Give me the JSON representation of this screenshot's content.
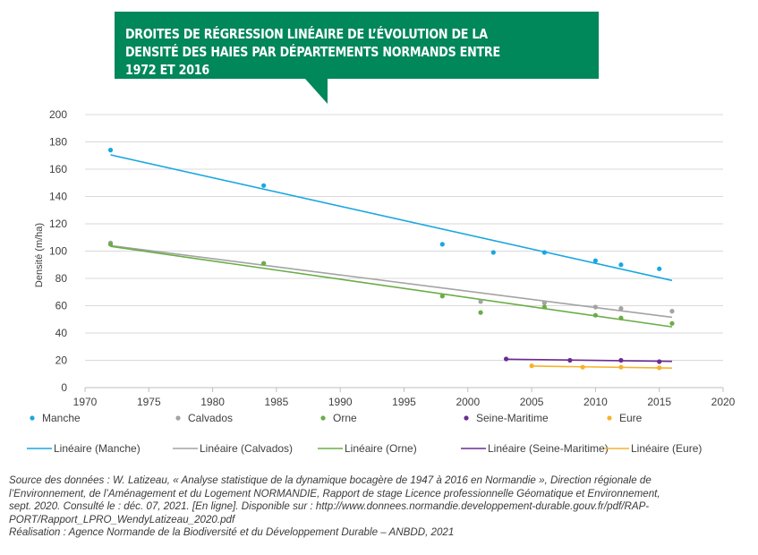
{
  "title": "DROITES DE RÉGRESSION LINÉAIRE DE L’ÉVOLUTION DE LA DENSITÉ DES HAIES PAR DÉPARTEMENTS NORMANDS ENTRE 1972 ET 2016",
  "colors": {
    "title_bg": "#00875a"
  },
  "chart_data": {
    "type": "scatter",
    "xlabel": "",
    "ylabel": "Densité (m/ha)",
    "xlim": [
      1970,
      2020
    ],
    "ylim": [
      0,
      200
    ],
    "x_ticks": [
      1970,
      1975,
      1980,
      1985,
      1990,
      1995,
      2000,
      2005,
      2010,
      2015,
      2020
    ],
    "y_ticks": [
      0,
      20,
      40,
      60,
      80,
      100,
      120,
      140,
      160,
      180,
      200
    ],
    "grid": "horizontal",
    "legend_position": "bottom",
    "series": [
      {
        "name": "Manche",
        "trend_name": "Linéaire (Manche)",
        "color": "#1aa7e0",
        "x": [
          1972,
          1984,
          1998,
          2002,
          2006,
          2010,
          2012,
          2015
        ],
        "y": [
          174,
          148,
          105,
          99,
          99,
          93,
          90,
          87
        ],
        "trend": [
          [
            1972,
            170.5
          ],
          [
            2016,
            78.5
          ]
        ]
      },
      {
        "name": "Calvados",
        "trend_name": "Linéaire (Calvados)",
        "color": "#a3a3a3",
        "x": [
          1972,
          1984,
          2001,
          2006,
          2010,
          2012,
          2016
        ],
        "y": [
          106,
          91,
          63,
          62,
          59,
          58,
          56
        ],
        "trend": [
          [
            1972,
            104
          ],
          [
            2016,
            51.5
          ]
        ]
      },
      {
        "name": "Orne",
        "trend_name": "Linéaire (Orne)",
        "color": "#6aad46",
        "x": [
          1972,
          1984,
          1998,
          2001,
          2006,
          2010,
          2012,
          2016
        ],
        "y": [
          105,
          91,
          67,
          55,
          59,
          53,
          51,
          47
        ],
        "trend": [
          [
            1972,
            103.5
          ],
          [
            2016,
            44.5
          ]
        ]
      },
      {
        "name": "Seine-Maritime",
        "trend_name": "Linéaire (Seine-Maritime)",
        "color": "#6b2c91",
        "x": [
          2003,
          2008,
          2012,
          2015
        ],
        "y": [
          21,
          20,
          20,
          19
        ],
        "trend": [
          [
            2003,
            20.8
          ],
          [
            2016,
            19.2
          ]
        ]
      },
      {
        "name": "Eure",
        "trend_name": "Linéaire (Eure)",
        "color": "#f7b32b",
        "x": [
          2005,
          2009,
          2012,
          2015
        ],
        "y": [
          16,
          15,
          15,
          14.5
        ],
        "trend": [
          [
            2005,
            15.8
          ],
          [
            2016,
            14.3
          ]
        ]
      }
    ]
  },
  "source_lines": [
    "Source des données : W. Latizeau, « Analyse statistique de la dynamique bocagère de 1947 à 2016 en Normandie », Direction régionale de",
    "l’Environnement, de l’Aménagement et du Logement NORMANDIE, Rapport de stage Licence professionnelle Géomatique et Environnement,",
    "sept. 2020. Consulté le : déc. 07, 2021. [En ligne]. Disponible sur : http://www.donnees.normandie.developpement-durable.gouv.fr/pdf/RAP-",
    "PORT/Rapport_LPRO_WendyLatizeau_2020.pdf",
    "Réalisation : Agence Normande de la Biodiversité et du Développement Durable – ANBDD, 2021"
  ]
}
